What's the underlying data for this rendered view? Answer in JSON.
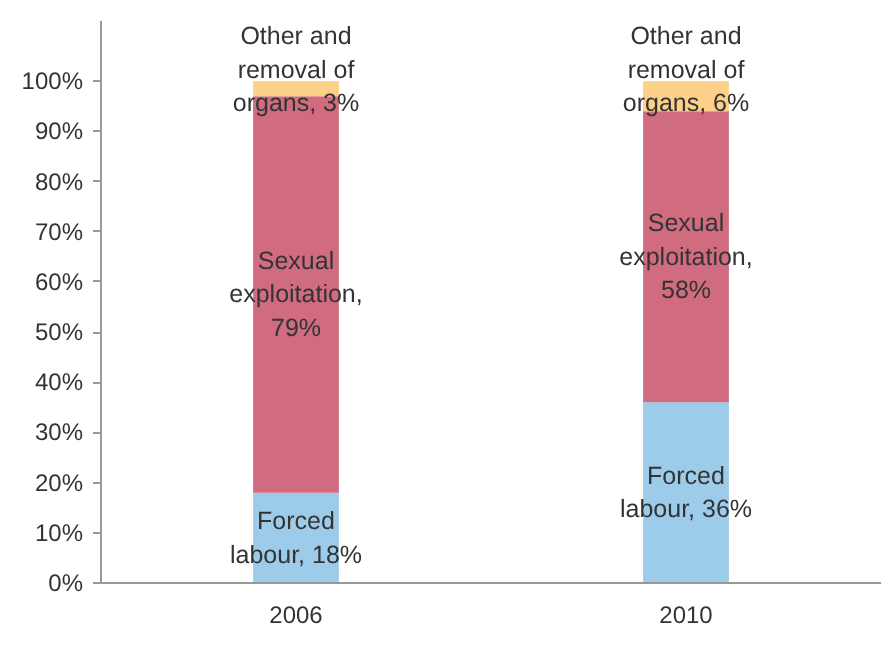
{
  "chart_data": {
    "type": "bar",
    "stacked": true,
    "categories": [
      "2006",
      "2010"
    ],
    "series": [
      {
        "color": "#9dcbea",
        "values": [
          18,
          36
        ],
        "value_labels": [
          "Forced\nlabour, 18%",
          "Forced\nlabour, 36%"
        ]
      },
      {
        "color": "#d06b80",
        "values": [
          79,
          58
        ],
        "value_labels": [
          "Sexual\nexploitation,\n79%",
          "Sexual\nexploitation,\n58%"
        ]
      },
      {
        "color": "#fcd088",
        "values": [
          3,
          6
        ],
        "value_labels": [
          "Other and\nremoval of\norgans, 3%",
          "Other and\nremoval of\norgans, 6%"
        ]
      }
    ],
    "ylim": [
      0,
      112
    ],
    "yticks": [
      {
        "value": 0,
        "label": "0%"
      },
      {
        "value": 10,
        "label": "10%"
      },
      {
        "value": 20,
        "label": "20%"
      },
      {
        "value": 30,
        "label": "30%"
      },
      {
        "value": 40,
        "label": "40%"
      },
      {
        "value": 50,
        "label": "50%"
      },
      {
        "value": 60,
        "label": "60%"
      },
      {
        "value": 70,
        "label": "70%"
      },
      {
        "value": 80,
        "label": "80%"
      },
      {
        "value": 90,
        "label": "90%"
      },
      {
        "value": 100,
        "label": "100%"
      }
    ],
    "grid": false
  }
}
